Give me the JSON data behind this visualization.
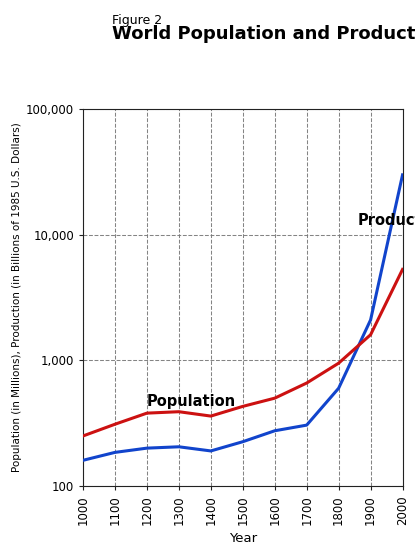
{
  "title_line1": "Figure 2",
  "title_line2": "World Population and Production",
  "xlabel": "Year",
  "ylabel": "Population (in Millions), Production (in Billions of 1985 U.S. Dollars)",
  "years": [
    1000,
    1100,
    1200,
    1300,
    1400,
    1500,
    1600,
    1700,
    1800,
    1900,
    2000
  ],
  "population": [
    250,
    310,
    380,
    390,
    360,
    430,
    500,
    660,
    950,
    1600,
    5300
  ],
  "production": [
    160,
    185,
    200,
    205,
    190,
    225,
    275,
    305,
    600,
    2100,
    30000
  ],
  "pop_color": "#cc1111",
  "prod_color": "#1144cc",
  "pop_label": "Population",
  "prod_label": "Production",
  "ylim_min": 100,
  "ylim_max": 100000,
  "xlim_min": 1000,
  "xlim_max": 2000,
  "xticks": [
    1000,
    1100,
    1200,
    1300,
    1400,
    1500,
    1600,
    1700,
    1800,
    1900,
    2000
  ],
  "yticks": [
    100,
    1000,
    10000,
    100000
  ],
  "ytick_labels": [
    "100",
    "1,000",
    "10,000",
    "100,000"
  ],
  "grid_color": "#777777",
  "bg_color": "#ffffff",
  "line_width": 2.2
}
